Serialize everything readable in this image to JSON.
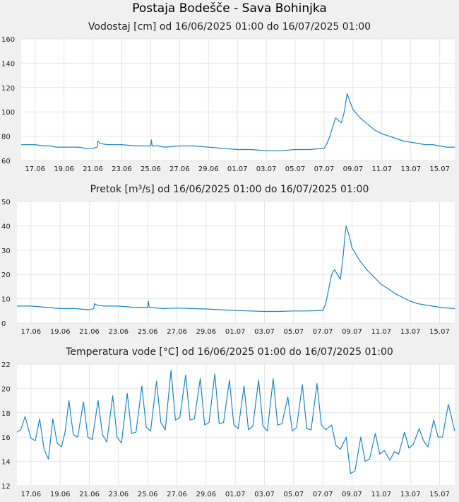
{
  "page_title": "Postaja Bodešče - Sava Bohinjka",
  "chart_data": [
    {
      "type": "line",
      "title": "Vodostaj [cm] od 16/06/2025 01:00 do 16/07/2025 01:00",
      "line_color": "#1a86c8",
      "ylim": [
        60,
        160
      ],
      "y_ticks": [
        "160",
        "140",
        "120",
        "100",
        "80",
        "60"
      ],
      "x_range": [
        16.04,
        46.04
      ],
      "x_tick_positions": [
        17,
        19,
        21,
        23,
        25,
        27,
        29,
        31,
        33,
        35,
        37,
        39,
        41,
        43,
        45
      ],
      "x_tick_labels": [
        "17.06",
        "19.06",
        "21.06",
        "23.06",
        "25.06",
        "27.06",
        "29.06",
        "01.07",
        "03.07",
        "05.07",
        "07.07",
        "09.07",
        "11.07",
        "13.07",
        "15.07"
      ],
      "grid": true,
      "x": [
        16.04,
        17.0,
        17.6,
        18.0,
        18.5,
        19.0,
        19.5,
        20.0,
        20.5,
        21.0,
        21.3,
        21.35,
        21.5,
        22.0,
        23.0,
        24.0,
        25.0,
        25.05,
        25.1,
        25.5,
        26.0,
        27.0,
        28.0,
        29.0,
        30.0,
        31.0,
        32.0,
        33.0,
        34.0,
        35.0,
        36.0,
        37.0,
        37.2,
        37.4,
        37.6,
        37.8,
        38.0,
        38.2,
        38.4,
        38.5,
        38.6,
        38.8,
        39.0,
        39.5,
        40.0,
        40.5,
        41.0,
        41.5,
        42.0,
        42.5,
        43.0,
        43.5,
        44.0,
        44.5,
        45.0,
        45.5,
        46.04
      ],
      "y": [
        73,
        73,
        72,
        72,
        71,
        71,
        71,
        71,
        70,
        70,
        71,
        76,
        74,
        73,
        73,
        72,
        72,
        77,
        72,
        72,
        71,
        72,
        72,
        71,
        70,
        69,
        69,
        68,
        68,
        69,
        69,
        70,
        74,
        80,
        88,
        95,
        93,
        91,
        100,
        108,
        115,
        108,
        102,
        95,
        90,
        85,
        82,
        80,
        78,
        76,
        75,
        74,
        73,
        73,
        72,
        71,
        71
      ]
    },
    {
      "type": "line",
      "title": "Pretok [m³/s] od 16/06/2025 01:00 do 16/07/2025 01:00",
      "line_color": "#1a86c8",
      "ylim": [
        0,
        50
      ],
      "y_ticks": [
        "50",
        "40",
        "30",
        "20",
        "10",
        "0"
      ],
      "x_range": [
        16.04,
        46.04
      ],
      "x_tick_positions": [
        17,
        19,
        21,
        23,
        25,
        27,
        29,
        31,
        33,
        35,
        37,
        39,
        41,
        43,
        45
      ],
      "x_tick_labels": [
        "17.06",
        "19.06",
        "21.06",
        "23.06",
        "25.06",
        "27.06",
        "29.06",
        "01.07",
        "03.07",
        "05.07",
        "07.07",
        "09.07",
        "11.07",
        "13.07",
        "15.07"
      ],
      "grid": true,
      "x": [
        16.04,
        17.0,
        18.0,
        19.0,
        20.0,
        21.0,
        21.3,
        21.35,
        21.5,
        22.0,
        23.0,
        24.0,
        25.0,
        25.05,
        25.1,
        26.0,
        27.0,
        28.0,
        29.0,
        30.0,
        31.0,
        32.0,
        33.0,
        34.0,
        35.0,
        36.0,
        37.0,
        37.2,
        37.4,
        37.6,
        37.8,
        38.0,
        38.2,
        38.4,
        38.5,
        38.6,
        38.8,
        39.0,
        39.5,
        40.0,
        40.5,
        41.0,
        41.5,
        42.0,
        42.5,
        43.0,
        43.5,
        44.0,
        44.5,
        45.0,
        46.04
      ],
      "y": [
        7,
        7,
        6.5,
        6,
        6,
        5.5,
        6,
        8,
        7.5,
        7,
        7,
        6.5,
        6.5,
        9,
        6.5,
        6,
        6.2,
        6,
        5.8,
        5.5,
        5.2,
        5,
        4.8,
        4.8,
        5,
        5,
        5.2,
        8,
        14,
        20,
        22,
        20,
        18,
        28,
        35,
        40,
        36,
        31,
        26,
        22,
        19,
        16,
        14,
        12,
        10.5,
        9,
        8,
        7.5,
        7,
        6.5,
        6
      ]
    },
    {
      "type": "line",
      "title": "Temperatura vode [°C] od 16/06/2025 01:00 do 16/07/2025 01:00",
      "line_color": "#1a86c8",
      "ylim": [
        12,
        22
      ],
      "y_ticks": [
        "22",
        "20",
        "18",
        "16",
        "14",
        "12"
      ],
      "x_range": [
        16.04,
        46.04
      ],
      "x_tick_positions": [
        17,
        19,
        21,
        23,
        25,
        27,
        29,
        31,
        33,
        35,
        37,
        39,
        41,
        43,
        45
      ],
      "x_tick_labels": [
        "17.06",
        "19.06",
        "21.06",
        "23.06",
        "25.06",
        "27.06",
        "29.06",
        "01.07",
        "03.07",
        "05.07",
        "07.07",
        "09.07",
        "11.07",
        "13.07",
        "15.07"
      ],
      "grid": true,
      "x": [
        16.04,
        16.3,
        16.6,
        17.0,
        17.3,
        17.6,
        17.9,
        18.2,
        18.5,
        18.8,
        19.1,
        19.35,
        19.6,
        19.9,
        20.2,
        20.6,
        20.9,
        21.2,
        21.6,
        21.9,
        22.2,
        22.6,
        22.9,
        23.2,
        23.6,
        23.9,
        24.2,
        24.6,
        24.9,
        25.2,
        25.6,
        25.9,
        26.2,
        26.6,
        26.9,
        27.2,
        27.6,
        27.9,
        28.2,
        28.6,
        28.9,
        29.2,
        29.6,
        29.9,
        30.2,
        30.6,
        30.9,
        31.2,
        31.6,
        31.9,
        32.2,
        32.6,
        32.9,
        33.2,
        33.6,
        33.9,
        34.2,
        34.6,
        34.9,
        35.2,
        35.6,
        35.9,
        36.2,
        36.6,
        36.9,
        37.2,
        37.6,
        37.9,
        38.2,
        38.6,
        38.9,
        39.2,
        39.6,
        39.9,
        40.2,
        40.6,
        40.9,
        41.2,
        41.6,
        41.9,
        42.2,
        42.6,
        42.9,
        43.2,
        43.6,
        43.9,
        44.2,
        44.6,
        44.9,
        45.2,
        45.6,
        46.04
      ],
      "y": [
        16.4,
        16.6,
        17.7,
        15.9,
        15.7,
        17.5,
        15.0,
        14.2,
        17.5,
        15.5,
        15.2,
        16.5,
        19.0,
        16.2,
        16.0,
        18.9,
        16.0,
        15.8,
        19.0,
        16.2,
        15.6,
        19.4,
        16.0,
        15.5,
        19.6,
        16.3,
        16.4,
        20.2,
        16.8,
        16.5,
        20.6,
        17.2,
        16.6,
        21.5,
        17.4,
        17.6,
        21.1,
        17.4,
        17.5,
        20.8,
        17.0,
        17.2,
        21.2,
        17.1,
        17.2,
        20.7,
        17.0,
        16.7,
        20.2,
        16.6,
        16.9,
        20.7,
        16.9,
        16.5,
        20.8,
        17.0,
        17.1,
        19.3,
        16.5,
        16.8,
        20.3,
        16.7,
        16.6,
        20.4,
        17.0,
        16.6,
        17.0,
        15.3,
        15.0,
        16.0,
        13.0,
        13.2,
        16.0,
        14.0,
        14.2,
        16.3,
        14.6,
        14.9,
        14.1,
        14.8,
        14.6,
        16.4,
        15.1,
        15.4,
        16.7,
        15.7,
        15.2,
        17.4,
        16.0,
        16.0,
        18.7,
        16.5
      ]
    }
  ]
}
